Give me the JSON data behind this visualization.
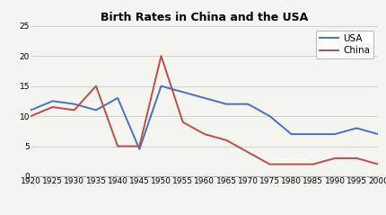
{
  "title": "Birth Rates in China and the USA",
  "years": [
    1920,
    1925,
    1930,
    1935,
    1940,
    1945,
    1950,
    1955,
    1960,
    1965,
    1970,
    1975,
    1980,
    1985,
    1990,
    1995,
    2000
  ],
  "usa": [
    11,
    12.5,
    12,
    11,
    13,
    4.5,
    15,
    14,
    13,
    12,
    12,
    10,
    7,
    7,
    7,
    8,
    7
  ],
  "china": [
    10,
    11.5,
    11,
    15,
    5,
    5,
    20,
    9,
    7,
    6,
    4,
    2,
    2,
    2,
    3,
    3,
    2
  ],
  "usa_color": "#4472c4",
  "china_color": "#be4b48",
  "background_color": "#f5f5f0",
  "plot_bg_color": "#f5f5f0",
  "ylim": [
    0,
    25
  ],
  "yticks": [
    0,
    5,
    10,
    15,
    20,
    25
  ],
  "legend_labels": [
    "USA",
    "China"
  ],
  "title_fontsize": 9,
  "tick_fontsize": 6.5,
  "legend_fontsize": 7.5,
  "linewidth": 1.4
}
